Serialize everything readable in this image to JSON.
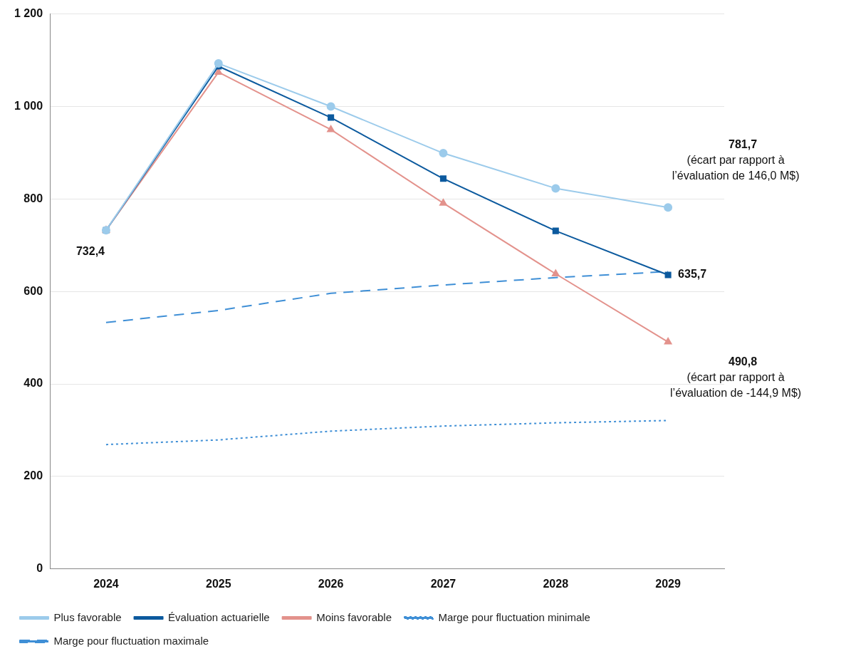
{
  "chart_data": {
    "type": "line",
    "categories": [
      "2024",
      "2025",
      "2026",
      "2027",
      "2028",
      "2029"
    ],
    "series": [
      {
        "name": "Plus favorable",
        "color": "#9ccbeb",
        "marker": "circle",
        "line_style": "solid",
        "values": [
          732.4,
          1093,
          1000,
          899,
          823,
          781.7
        ]
      },
      {
        "name": "Évaluation actuarielle",
        "color": "#0c5a9e",
        "marker": "square",
        "line_style": "solid",
        "values": [
          732.4,
          1087,
          976,
          844,
          731,
          635.7
        ]
      },
      {
        "name": "Moins favorable",
        "color": "#e3928c",
        "marker": "triangle",
        "line_style": "solid",
        "values": [
          732.4,
          1074,
          950,
          791,
          638,
          490.8
        ]
      },
      {
        "name": "Marge pour fluctuation minimale",
        "color": "#3f8fd6",
        "marker": "none",
        "line_style": "dotted",
        "values": [
          269,
          279,
          298,
          309,
          316,
          321
        ]
      },
      {
        "name": "Marge pour fluctuation maximale",
        "color": "#3f8fd6",
        "marker": "none",
        "line_style": "dashed",
        "values": [
          533,
          559,
          596,
          614,
          630,
          643
        ]
      }
    ],
    "ylim": [
      0,
      1200
    ],
    "yticks": [
      0,
      200,
      400,
      600,
      800,
      {
        "value": 1000,
        "label": "1 000"
      },
      {
        "value": 1200,
        "label": "1 200"
      }
    ],
    "grid": "y",
    "legend": "bottom",
    "annotations": [
      {
        "text": "732,4",
        "x": "2024",
        "y": 732.4
      },
      {
        "text": "781,7\n(écart par rapport à\nl’évaluation de 146,0 M$)",
        "x": "2029",
        "y": 781.7
      },
      {
        "text": "635,7",
        "x": "2029",
        "y": 635.7
      },
      {
        "text": "490,8\n(écart par rapport à\nl’évaluation de -144,9 M$)",
        "x": "2029",
        "y": 490.8
      }
    ]
  }
}
